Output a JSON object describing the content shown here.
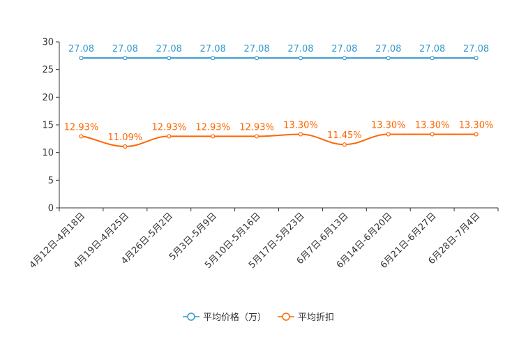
{
  "chart_data": {
    "type": "line",
    "categories": [
      "4月12日-4月18日",
      "4月19日-4月25日",
      "4月26日-5月2日",
      "5月3日-5月9日",
      "5月10日-5月16日",
      "5月17日-5月23日",
      "6月7日-6月13日",
      "6月14日-6月20日",
      "6月21日-6月27日",
      "6月28日-7月4日"
    ],
    "ylim": [
      0,
      30
    ],
    "yticks": [
      "0",
      "5",
      "10",
      "15",
      "20",
      "25",
      "30"
    ],
    "series": [
      {
        "name": "平均价格（万）",
        "color": "#3399cc",
        "values": [
          27.08,
          27.08,
          27.08,
          27.08,
          27.08,
          27.08,
          27.08,
          27.08,
          27.08,
          27.08
        ],
        "labels": [
          "27.08",
          "27.08",
          "27.08",
          "27.08",
          "27.08",
          "27.08",
          "27.08",
          "27.08",
          "27.08",
          "27.08"
        ]
      },
      {
        "name": "平均折扣",
        "color": "#ff6600",
        "values": [
          12.93,
          11.09,
          12.93,
          12.93,
          12.93,
          13.3,
          11.45,
          13.3,
          13.3,
          13.3
        ],
        "labels": [
          "12.93%",
          "11.09%",
          "12.93%",
          "12.93%",
          "12.93%",
          "13.30%",
          "11.45%",
          "13.30%",
          "13.30%",
          "13.30%"
        ]
      }
    ],
    "legend_position": "bottom-center",
    "grid": false
  }
}
